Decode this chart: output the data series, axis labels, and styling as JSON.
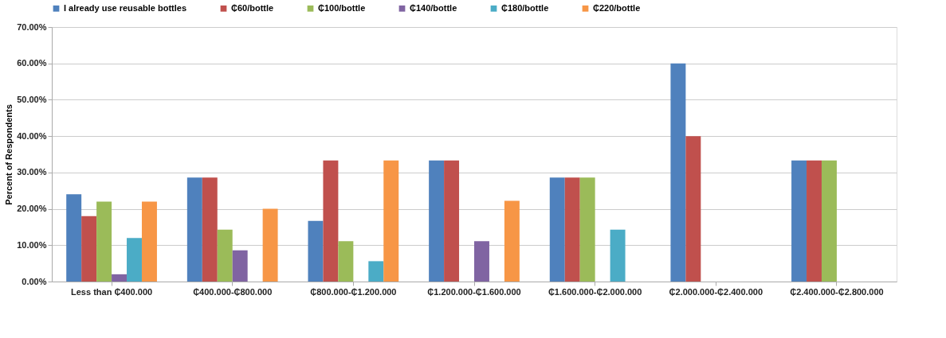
{
  "chart_data": {
    "type": "bar",
    "ylabel": "Percent of Respondents",
    "categories": [
      "Less than ₵400.000",
      "₵400.000-₵800.000",
      "₵800.000-₵1.200.000",
      "₵1.200.000-₵1.600.000",
      "₵1.600.000-₵2.000.000",
      "₵2.000.000-₵2.400.000",
      "₵2.400.000-₵2.800.000"
    ],
    "series": [
      {
        "name": "I already use reusable bottles",
        "color": "#4f81bd",
        "values": [
          24,
          28.6,
          16.7,
          33.3,
          28.6,
          60,
          33.3
        ]
      },
      {
        "name": "₵60/bottle",
        "color": "#c0504d",
        "values": [
          18,
          28.6,
          33.3,
          33.3,
          28.6,
          40,
          33.3
        ]
      },
      {
        "name": "₵100/bottle",
        "color": "#9bbb59",
        "values": [
          22,
          14.3,
          11.1,
          null,
          28.6,
          null,
          33.3
        ]
      },
      {
        "name": "₵140/bottle",
        "color": "#8064a2",
        "values": [
          2,
          8.6,
          null,
          11.1,
          null,
          null,
          null
        ]
      },
      {
        "name": "₵180/bottle",
        "color": "#4bacc6",
        "values": [
          12,
          null,
          5.6,
          null,
          14.3,
          null,
          null
        ]
      },
      {
        "name": "₵220/bottle",
        "color": "#f79646",
        "values": [
          22,
          20,
          33.3,
          22.2,
          null,
          null,
          null
        ]
      }
    ],
    "ylim": [
      0,
      70
    ],
    "yticks": [
      {
        "value": 0,
        "label": "0.00%"
      },
      {
        "value": 10,
        "label": "10.00%"
      },
      {
        "value": 20,
        "label": "20.00%"
      },
      {
        "value": 30,
        "label": "30.00%"
      },
      {
        "value": 40,
        "label": "40.00%"
      },
      {
        "value": 50,
        "label": "50.00%"
      },
      {
        "value": 60,
        "label": "60.00%"
      },
      {
        "value": 70,
        "label": "70.00%"
      }
    ],
    "grid": "y",
    "legend": "top"
  }
}
